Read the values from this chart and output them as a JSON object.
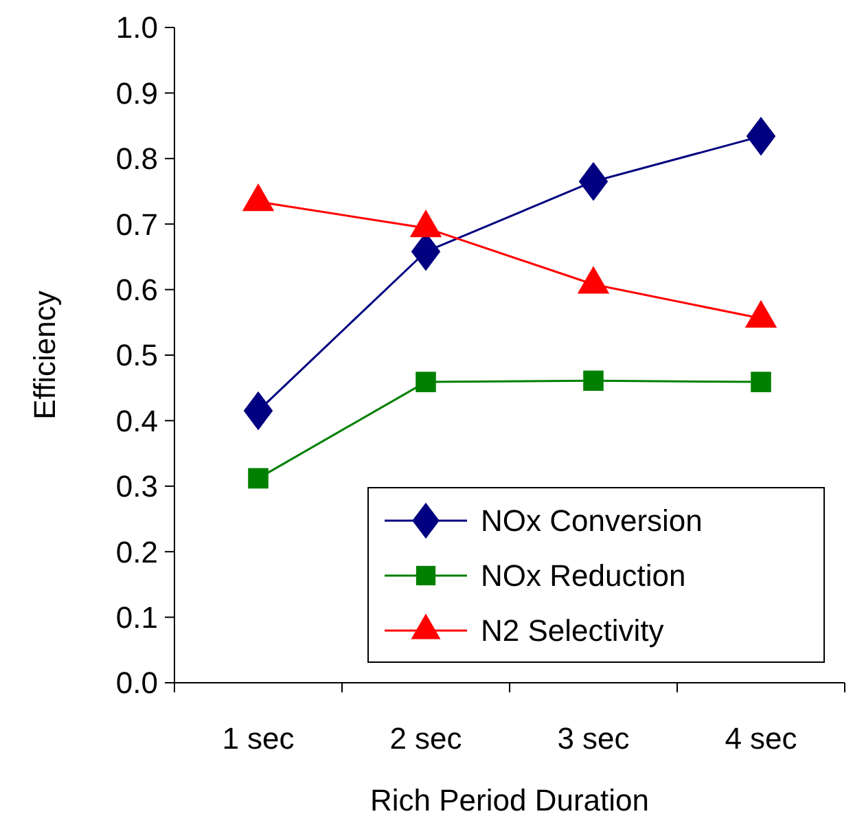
{
  "chart_data": {
    "type": "line",
    "xlabel": "Rich Period Duration",
    "ylabel": "Efficiency",
    "categories": [
      "1 sec",
      "2 sec",
      "3 sec",
      "4 sec"
    ],
    "series": [
      {
        "name": "NOx Conversion",
        "color": "#000080",
        "marker": "diamond",
        "values": [
          0.415,
          0.658,
          0.765,
          0.834
        ]
      },
      {
        "name": "NOx Reduction",
        "color": "#008000",
        "marker": "square",
        "values": [
          0.312,
          0.459,
          0.461,
          0.459
        ]
      },
      {
        "name": "N2 Selectivity",
        "color": "#ff0000",
        "marker": "triangle",
        "values": [
          0.734,
          0.694,
          0.608,
          0.556
        ]
      }
    ],
    "ylim": [
      0,
      1
    ],
    "yticks": [
      {
        "value": 0,
        "label": "0.0"
      },
      {
        "value": 0.1,
        "label": "0.1"
      },
      {
        "value": 0.2,
        "label": "0.2"
      },
      {
        "value": 0.3,
        "label": "0.3"
      },
      {
        "value": 0.4,
        "label": "0.4"
      },
      {
        "value": 0.5,
        "label": "0.5"
      },
      {
        "value": 0.6,
        "label": "0.6"
      },
      {
        "value": 0.7,
        "label": "0.7"
      },
      {
        "value": 0.8,
        "label": "0.8"
      },
      {
        "value": 0.9,
        "label": "0.9"
      },
      {
        "value": 1,
        "label": "1.0"
      }
    ],
    "grid": false,
    "legend": "bottom right"
  }
}
